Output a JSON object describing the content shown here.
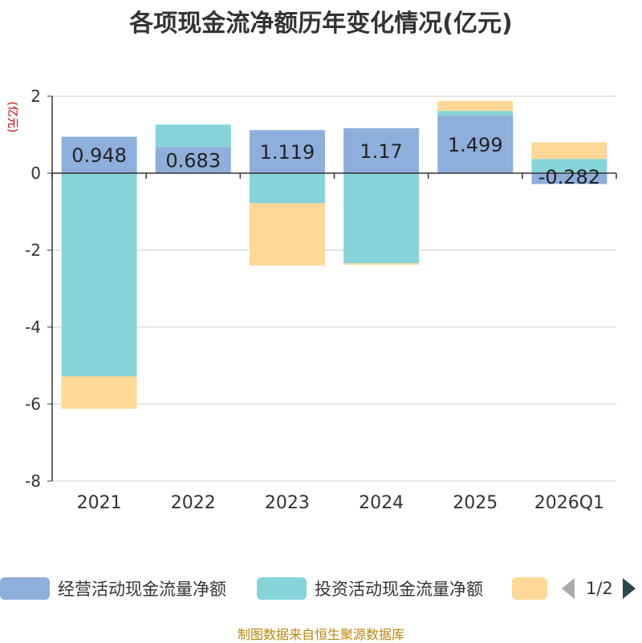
{
  "title": "各项现金流净额历年变化情况(亿元)",
  "source": "制图数据来自恒生聚源数据库",
  "colors": {
    "operating": "#8eaedb",
    "investing": "#86d4d8",
    "financing": "#ffd898",
    "axis": "#333333",
    "grid": "#cccccc",
    "unit": "#cc0000"
  },
  "legend": {
    "items": [
      {
        "label": "经营活动现金流量净额",
        "color": "#8eaedb"
      },
      {
        "label": "投资活动现金流量净额",
        "color": "#86d4d8"
      },
      {
        "label": "",
        "color": "#ffd898"
      }
    ],
    "page": "1/2"
  },
  "chart_data": {
    "type": "bar",
    "stacked": true,
    "title": "各项现金流净额历年变化情况(亿元)",
    "ylabel": "(亿元)",
    "xlabel": "",
    "ylim": [
      -8,
      2
    ],
    "yticks": [
      2,
      0,
      -2,
      -4,
      -6,
      -8
    ],
    "grid": true,
    "legend_position": "bottom",
    "categories": [
      "2021",
      "2022",
      "2023",
      "2024",
      "2025",
      "2026Q1"
    ],
    "series": [
      {
        "name": "经营活动现金流量净额",
        "values": [
          0.948,
          0.683,
          1.119,
          1.17,
          1.499,
          -0.282
        ]
      },
      {
        "name": "投资活动现金流量净额",
        "values": [
          -5.28,
          0.58,
          -0.78,
          -2.34,
          0.12,
          0.37
        ]
      },
      {
        "name": "",
        "values": [
          -0.84,
          0,
          -1.62,
          -0.04,
          0.26,
          0.43
        ]
      }
    ],
    "data_labels": [
      "0.948",
      "0.683",
      "1.119",
      "1.17",
      "1.499",
      "-0.282"
    ]
  }
}
